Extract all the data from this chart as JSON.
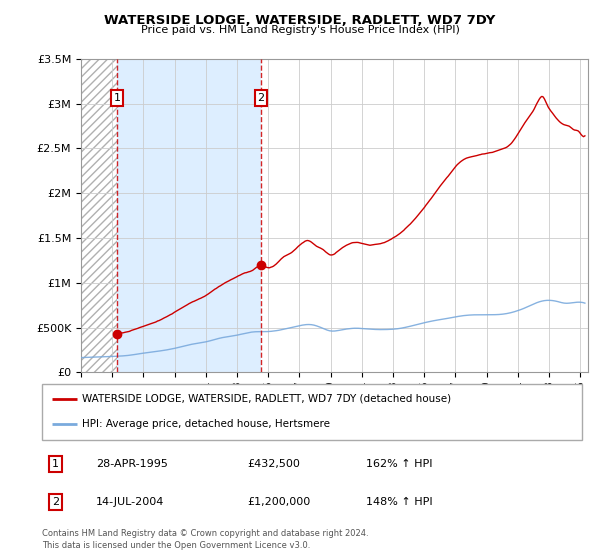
{
  "title": "WATERSIDE LODGE, WATERSIDE, RADLETT, WD7 7DY",
  "subtitle": "Price paid vs. HM Land Registry's House Price Index (HPI)",
  "legend_line1": "WATERSIDE LODGE, WATERSIDE, RADLETT, WD7 7DY (detached house)",
  "legend_line2": "HPI: Average price, detached house, Hertsmere",
  "footer": "Contains HM Land Registry data © Crown copyright and database right 2024.\nThis data is licensed under the Open Government Licence v3.0.",
  "table": [
    {
      "num": "1",
      "date": "28-APR-1995",
      "price": "£432,500",
      "hpi": "162% ↑ HPI"
    },
    {
      "num": "2",
      "date": "14-JUL-2004",
      "price": "£1,200,000",
      "hpi": "148% ↑ HPI"
    }
  ],
  "sale1_year": 1995.32,
  "sale1_price": 432500,
  "sale2_year": 2004.54,
  "sale2_price": 1200000,
  "ylim": [
    0,
    3500000
  ],
  "xlim_start": 1993.0,
  "xlim_end": 2025.5,
  "red_line_color": "#cc0000",
  "blue_line_color": "#7aaadd",
  "grid_color": "#cccccc",
  "hatch_bg_color": "#e8e8e8",
  "blue_bg_color": "#ddeeff",
  "xtick_step": 2
}
